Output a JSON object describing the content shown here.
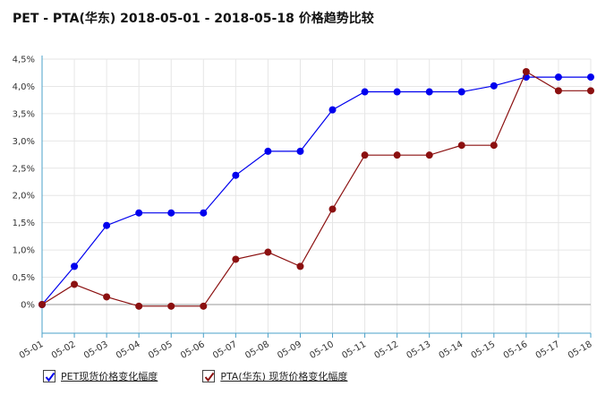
{
  "title": "PET - PTA(华东) 2018-05-01 - 2018-05-18 价格趋势比较",
  "chart_data": {
    "type": "line",
    "title": "PET - PTA(华东) 2018-05-01 - 2018-05-18 价格趋势比较",
    "categories": [
      "05-01",
      "05-02",
      "05-03",
      "05-04",
      "05-05",
      "05-06",
      "05-07",
      "05-08",
      "05-09",
      "05-10",
      "05-11",
      "05-12",
      "05-13",
      "05-14",
      "05-15",
      "05-16",
      "05-17",
      "05-18"
    ],
    "y_ticks": [
      "0%",
      "0,5%",
      "1,0%",
      "1,5%",
      "2,0%",
      "2,5%",
      "3,0%",
      "3,5%",
      "4,0%",
      "4,5%"
    ],
    "ylim": [
      -0.05,
      4.5
    ],
    "grid": true,
    "legend_position": "bottom-left",
    "series": [
      {
        "name": "PET现货价格变化幅度",
        "color": "#0000ee",
        "values": [
          0,
          0.7,
          1.45,
          1.68,
          1.68,
          1.68,
          2.37,
          2.81,
          2.81,
          3.57,
          3.9,
          3.9,
          3.9,
          3.9,
          4.01,
          4.17,
          4.17,
          4.17
        ]
      },
      {
        "name": "PTA(华东) 现货价格变化幅度",
        "color": "#8b1010",
        "values": [
          0,
          0.37,
          0.14,
          -0.03,
          -0.03,
          -0.03,
          0.83,
          0.96,
          0.7,
          1.75,
          2.74,
          2.74,
          2.74,
          2.92,
          2.92,
          4.27,
          3.92,
          3.92
        ]
      }
    ]
  }
}
